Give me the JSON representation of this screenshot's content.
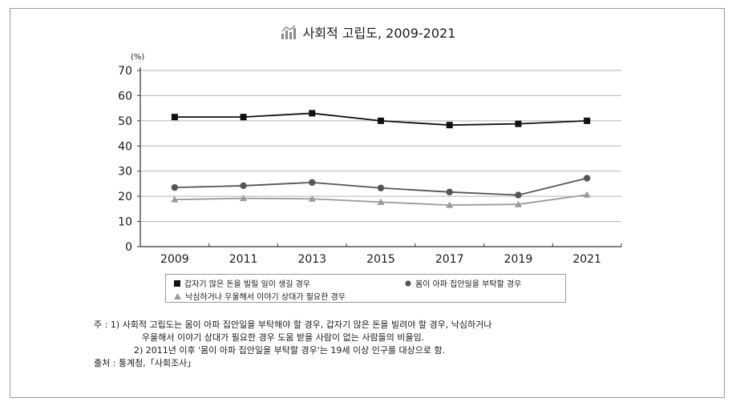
{
  "chart_data": {
    "type": "line",
    "title": "사회적 고립도, 2009-2021",
    "ylabel": "(%)",
    "xlabel": "",
    "ylim": [
      0,
      70
    ],
    "yticks": [
      0,
      10,
      20,
      30,
      40,
      50,
      60,
      70
    ],
    "categories": [
      "2009",
      "2011",
      "2013",
      "2015",
      "2017",
      "2019",
      "2021"
    ],
    "grid": true,
    "legend_position": "bottom",
    "series": [
      {
        "name": "갑자기 많은 돈을 빌릴 일이 생길 경우",
        "marker": "square",
        "color": "#111111",
        "values": [
          51.5,
          51.5,
          53.0,
          50.0,
          48.3,
          48.8,
          50.0
        ]
      },
      {
        "name": "몸이 아파 집안일을 부탁할 경우",
        "marker": "circle",
        "color": "#555555",
        "values": [
          23.5,
          24.2,
          25.5,
          23.3,
          21.7,
          20.5,
          27.2
        ]
      },
      {
        "name": "낙심하거나 우울해서 이야기 상대가 필요한 경우",
        "marker": "triangle",
        "color": "#999999",
        "values": [
          18.7,
          19.2,
          19.0,
          17.7,
          16.5,
          16.8,
          20.6
        ]
      }
    ]
  },
  "notes": {
    "line1": "주    : 1) 사회적 고립도는 몸이 아파 집안일을 부탁해야 할 경우, 갑자기 많은 돈을 빌려야 할 경우, 낙심하거나",
    "line2": "우울해서 이야기 상대가 필요한 경우 도움 받을 사람이 없는 사람들의 비율임.",
    "line3": "2) 2011년 이후 '몸이 아파 집안일을 부탁할 경우'는 19세 이상 인구를 대상으로 함.",
    "line4": "출처 : 통계청,「사회조사」"
  },
  "icons": {
    "title_icon": "bar-chart-icon"
  }
}
